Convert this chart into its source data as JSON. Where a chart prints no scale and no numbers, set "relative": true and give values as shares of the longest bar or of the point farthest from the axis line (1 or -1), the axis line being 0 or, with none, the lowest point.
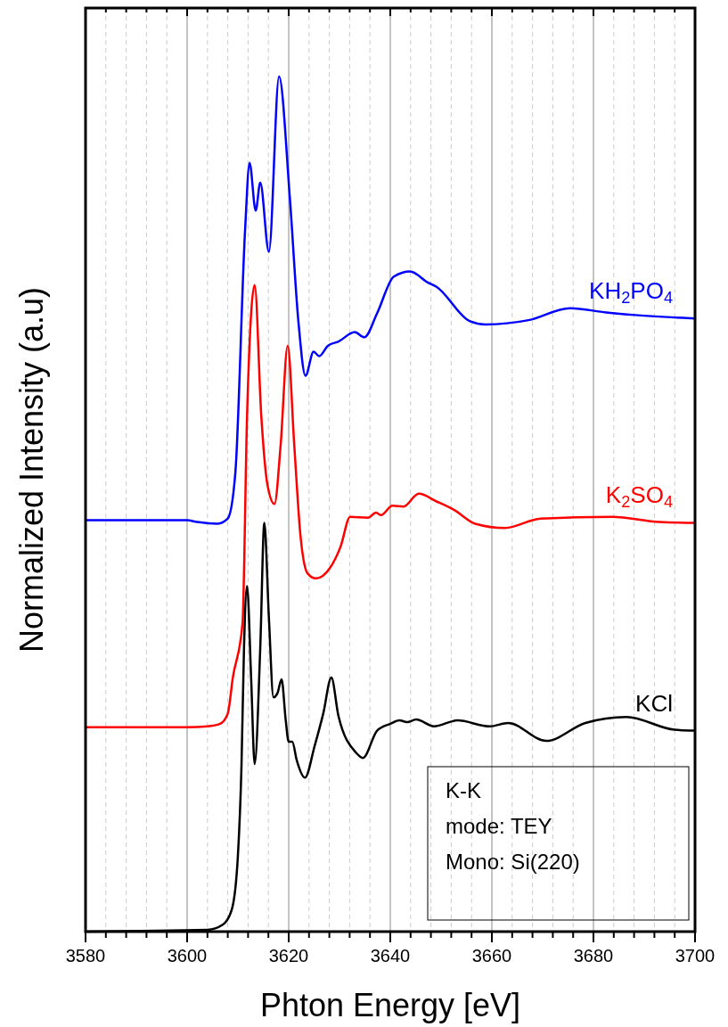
{
  "chart_data": {
    "type": "line",
    "relative": true,
    "xlabel": "Phton Energy [eV]",
    "ylabel": "Normalized Intensity (a.u)",
    "xlim": [
      3580,
      3700
    ],
    "xticks": [
      3580,
      {
        "value": 3584,
        "label": null
      },
      {
        "value": 3588,
        "label": null
      },
      {
        "value": 3592,
        "label": null
      },
      {
        "value": 3596,
        "label": null
      },
      3600,
      {
        "value": 3604,
        "label": null
      },
      {
        "value": 3608,
        "label": null
      },
      {
        "value": 3612,
        "label": null
      },
      {
        "value": 3616,
        "label": null
      },
      3620,
      {
        "value": 3624,
        "label": null
      },
      {
        "value": 3628,
        "label": null
      },
      {
        "value": 3632,
        "label": null
      },
      {
        "value": 3636,
        "label": null
      },
      3640,
      {
        "value": 3644,
        "label": null
      },
      {
        "value": 3648,
        "label": null
      },
      {
        "value": 3652,
        "label": null
      },
      {
        "value": 3656,
        "label": null
      },
      3660,
      {
        "value": 3664,
        "label": null
      },
      {
        "value": 3668,
        "label": null
      },
      {
        "value": 3672,
        "label": null
      },
      {
        "value": 3676,
        "label": null
      },
      3680,
      {
        "value": 3684,
        "label": null
      },
      {
        "value": 3688,
        "label": null
      },
      {
        "value": 3692,
        "label": null
      },
      {
        "value": 3696,
        "label": null
      },
      3700
    ],
    "grid": "x",
    "marker": "none",
    "line_style": "solid",
    "series": [
      {
        "name": "KH$_{2}$PO$_{4}$",
        "color": "#0000ff",
        "x": [
          3580,
          3600,
          3602,
          3606,
          3608,
          3609.5,
          3611.4,
          3612.3,
          3613.5,
          3614.4,
          3616.1,
          3618.1,
          3620.2,
          3621.9,
          3623.3,
          3624.9,
          3626,
          3627.7,
          3629.8,
          3633,
          3634.9,
          3637.4,
          3640.7,
          3643.9,
          3647.4,
          3649.1,
          3655.6,
          3658.8,
          3667.2,
          3675.4,
          3682.5,
          3688.2,
          3700
        ],
        "values": [
          0.481,
          0.481,
          0.479,
          0.477,
          0.483,
          0.537,
          0.819,
          0.899,
          0.843,
          0.876,
          0.795,
          1.0,
          0.86,
          0.714,
          0.65,
          0.678,
          0.673,
          0.685,
          0.69,
          0.701,
          0.695,
          0.723,
          0.766,
          0.772,
          0.759,
          0.754,
          0.714,
          0.71,
          0.715,
          0.729,
          0.724,
          0.721,
          0.717
        ]
      },
      {
        "name": "K$_{2}$SO$_{4}$",
        "color": "#ff0000",
        "x": [
          3580,
          3600,
          3604,
          3606.5,
          3608,
          3609,
          3610.9,
          3611.8,
          3613.3,
          3614.6,
          3615.8,
          3617.2,
          3618.4,
          3619.8,
          3621.1,
          3622.3,
          3623.7,
          3625.4,
          3628.1,
          3630.2,
          3632.1,
          3635.6,
          3637.2,
          3638.2,
          3640.4,
          3642.6,
          3645.6,
          3649.1,
          3652.6,
          3656.7,
          3662.6,
          3669.6,
          3683.7,
          3693,
          3700
        ],
        "values": [
          0.239,
          0.239,
          0.24,
          0.243,
          0.255,
          0.297,
          0.36,
          0.603,
          0.756,
          0.603,
          0.523,
          0.5,
          0.568,
          0.685,
          0.568,
          0.464,
          0.419,
          0.413,
          0.425,
          0.45,
          0.485,
          0.484,
          0.49,
          0.487,
          0.498,
          0.497,
          0.512,
          0.503,
          0.493,
          0.477,
          0.472,
          0.483,
          0.485,
          0.479,
          0.478
        ]
      },
      {
        "name": "KCl",
        "color": "#000000",
        "x": [
          3580,
          3604,
          3607,
          3608.8,
          3610,
          3610.7,
          3611.2,
          3611.8,
          3612.6,
          3613.3,
          3614.4,
          3615.2,
          3616.1,
          3617,
          3617.8,
          3618.6,
          3619.4,
          3620,
          3620.7,
          3621.6,
          3623.2,
          3625.1,
          3626.8,
          3628.4,
          3629.8,
          3633.3,
          3634.6,
          3637.4,
          3640,
          3641.8,
          3643.3,
          3645.1,
          3648.6,
          3653.2,
          3659.6,
          3663.2,
          3670.7,
          3678.4,
          3686.5,
          3696,
          3700
        ],
        "values": [
          0,
          0.002,
          0.008,
          0.026,
          0.089,
          0.193,
          0.332,
          0.404,
          0.297,
          0.196,
          0.332,
          0.478,
          0.367,
          0.274,
          0.279,
          0.295,
          0.248,
          0.222,
          0.222,
          0.2,
          0.18,
          0.217,
          0.255,
          0.297,
          0.252,
          0.209,
          0.203,
          0.235,
          0.243,
          0.247,
          0.245,
          0.248,
          0.24,
          0.247,
          0.24,
          0.244,
          0.223,
          0.244,
          0.251,
          0.236,
          0.235
        ]
      }
    ],
    "annotations": [
      "K-K",
      "mode: TEY",
      "Mono: Si(220)"
    ]
  }
}
